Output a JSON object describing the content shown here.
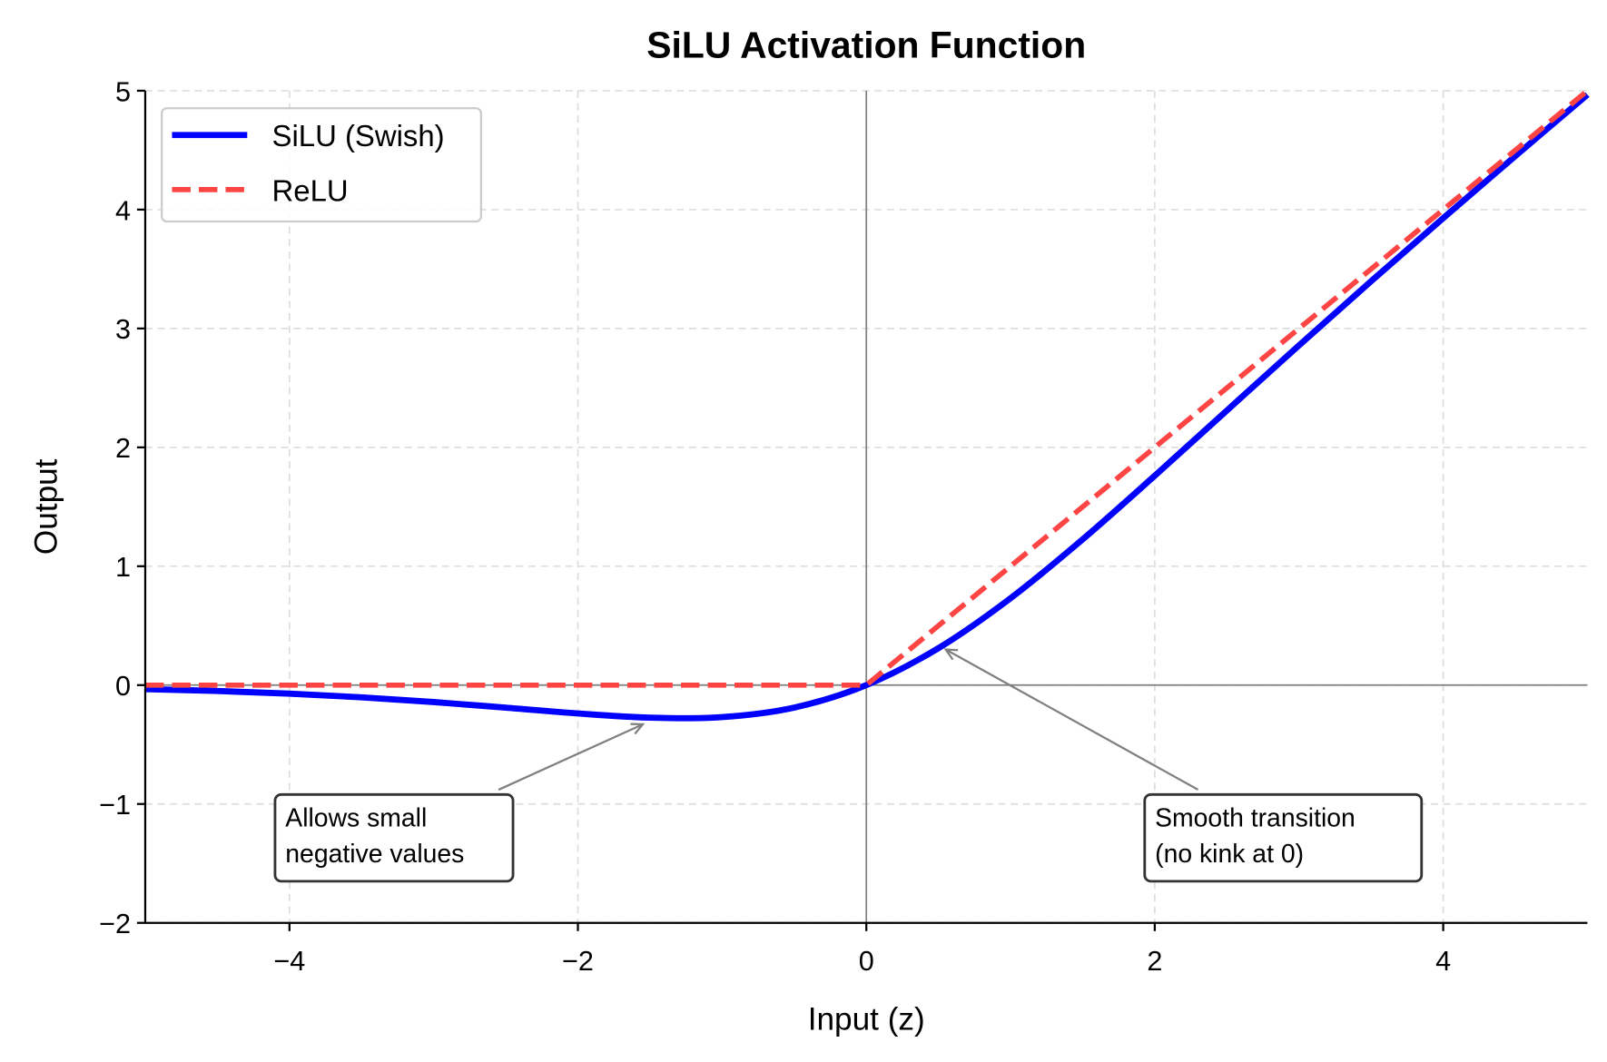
{
  "chart_data": {
    "type": "line",
    "title": "SiLU Activation Function",
    "xlabel": "Input (z)",
    "ylabel": "Output",
    "xlim": [
      -5,
      5
    ],
    "ylim": [
      -2,
      5
    ],
    "xticks": [
      -4,
      -2,
      0,
      2,
      4
    ],
    "xtick_labels": [
      "−4",
      "−2",
      "0",
      "2",
      "4"
    ],
    "yticks": [
      -2,
      -1,
      0,
      1,
      2,
      3,
      4,
      5
    ],
    "ytick_labels": [
      "−2",
      "−1",
      "0",
      "1",
      "2",
      "3",
      "4",
      "5"
    ],
    "grid": true,
    "legend_position": "top-left",
    "series": [
      {
        "name": "SiLU (Swish)",
        "color": "#0000ff",
        "style": "solid",
        "x": [
          -5,
          -4.5,
          -4,
          -3.5,
          -3,
          -2.5,
          -2,
          -1.5,
          -1,
          -0.5,
          0,
          0.5,
          1,
          1.5,
          2,
          2.5,
          3,
          3.5,
          4,
          4.5,
          5
        ],
        "y": [
          -0.0335,
          -0.0494,
          -0.0719,
          -0.1026,
          -0.1423,
          -0.1897,
          -0.2384,
          -0.2736,
          -0.2689,
          -0.1888,
          0,
          0.3112,
          0.7311,
          1.2264,
          1.7616,
          2.3103,
          2.8577,
          3.3974,
          3.9281,
          4.4507,
          4.9665
        ]
      },
      {
        "name": "ReLU",
        "color": "#ff4444",
        "style": "dashed",
        "x": [
          -5,
          0,
          5
        ],
        "y": [
          0,
          0,
          5
        ]
      }
    ],
    "annotations": [
      {
        "text_lines": [
          "Allows small",
          "negative values"
        ],
        "arrow_to": [
          -1.55,
          -0.33
        ],
        "arrow_from": [
          -2.55,
          -0.88
        ],
        "box_x": [
          -4.1,
          -2.45
        ],
        "box_y": [
          -1.65,
          -0.92
        ]
      },
      {
        "text_lines": [
          "Smooth transition",
          "(no kink at 0)"
        ],
        "arrow_to": [
          0.55,
          0.3
        ],
        "arrow_from": [
          2.3,
          -0.88
        ],
        "box_x": [
          1.93,
          3.85
        ],
        "box_y": [
          -1.65,
          -0.92
        ]
      }
    ],
    "reference_lines": {
      "x": 0,
      "y": 0
    }
  }
}
